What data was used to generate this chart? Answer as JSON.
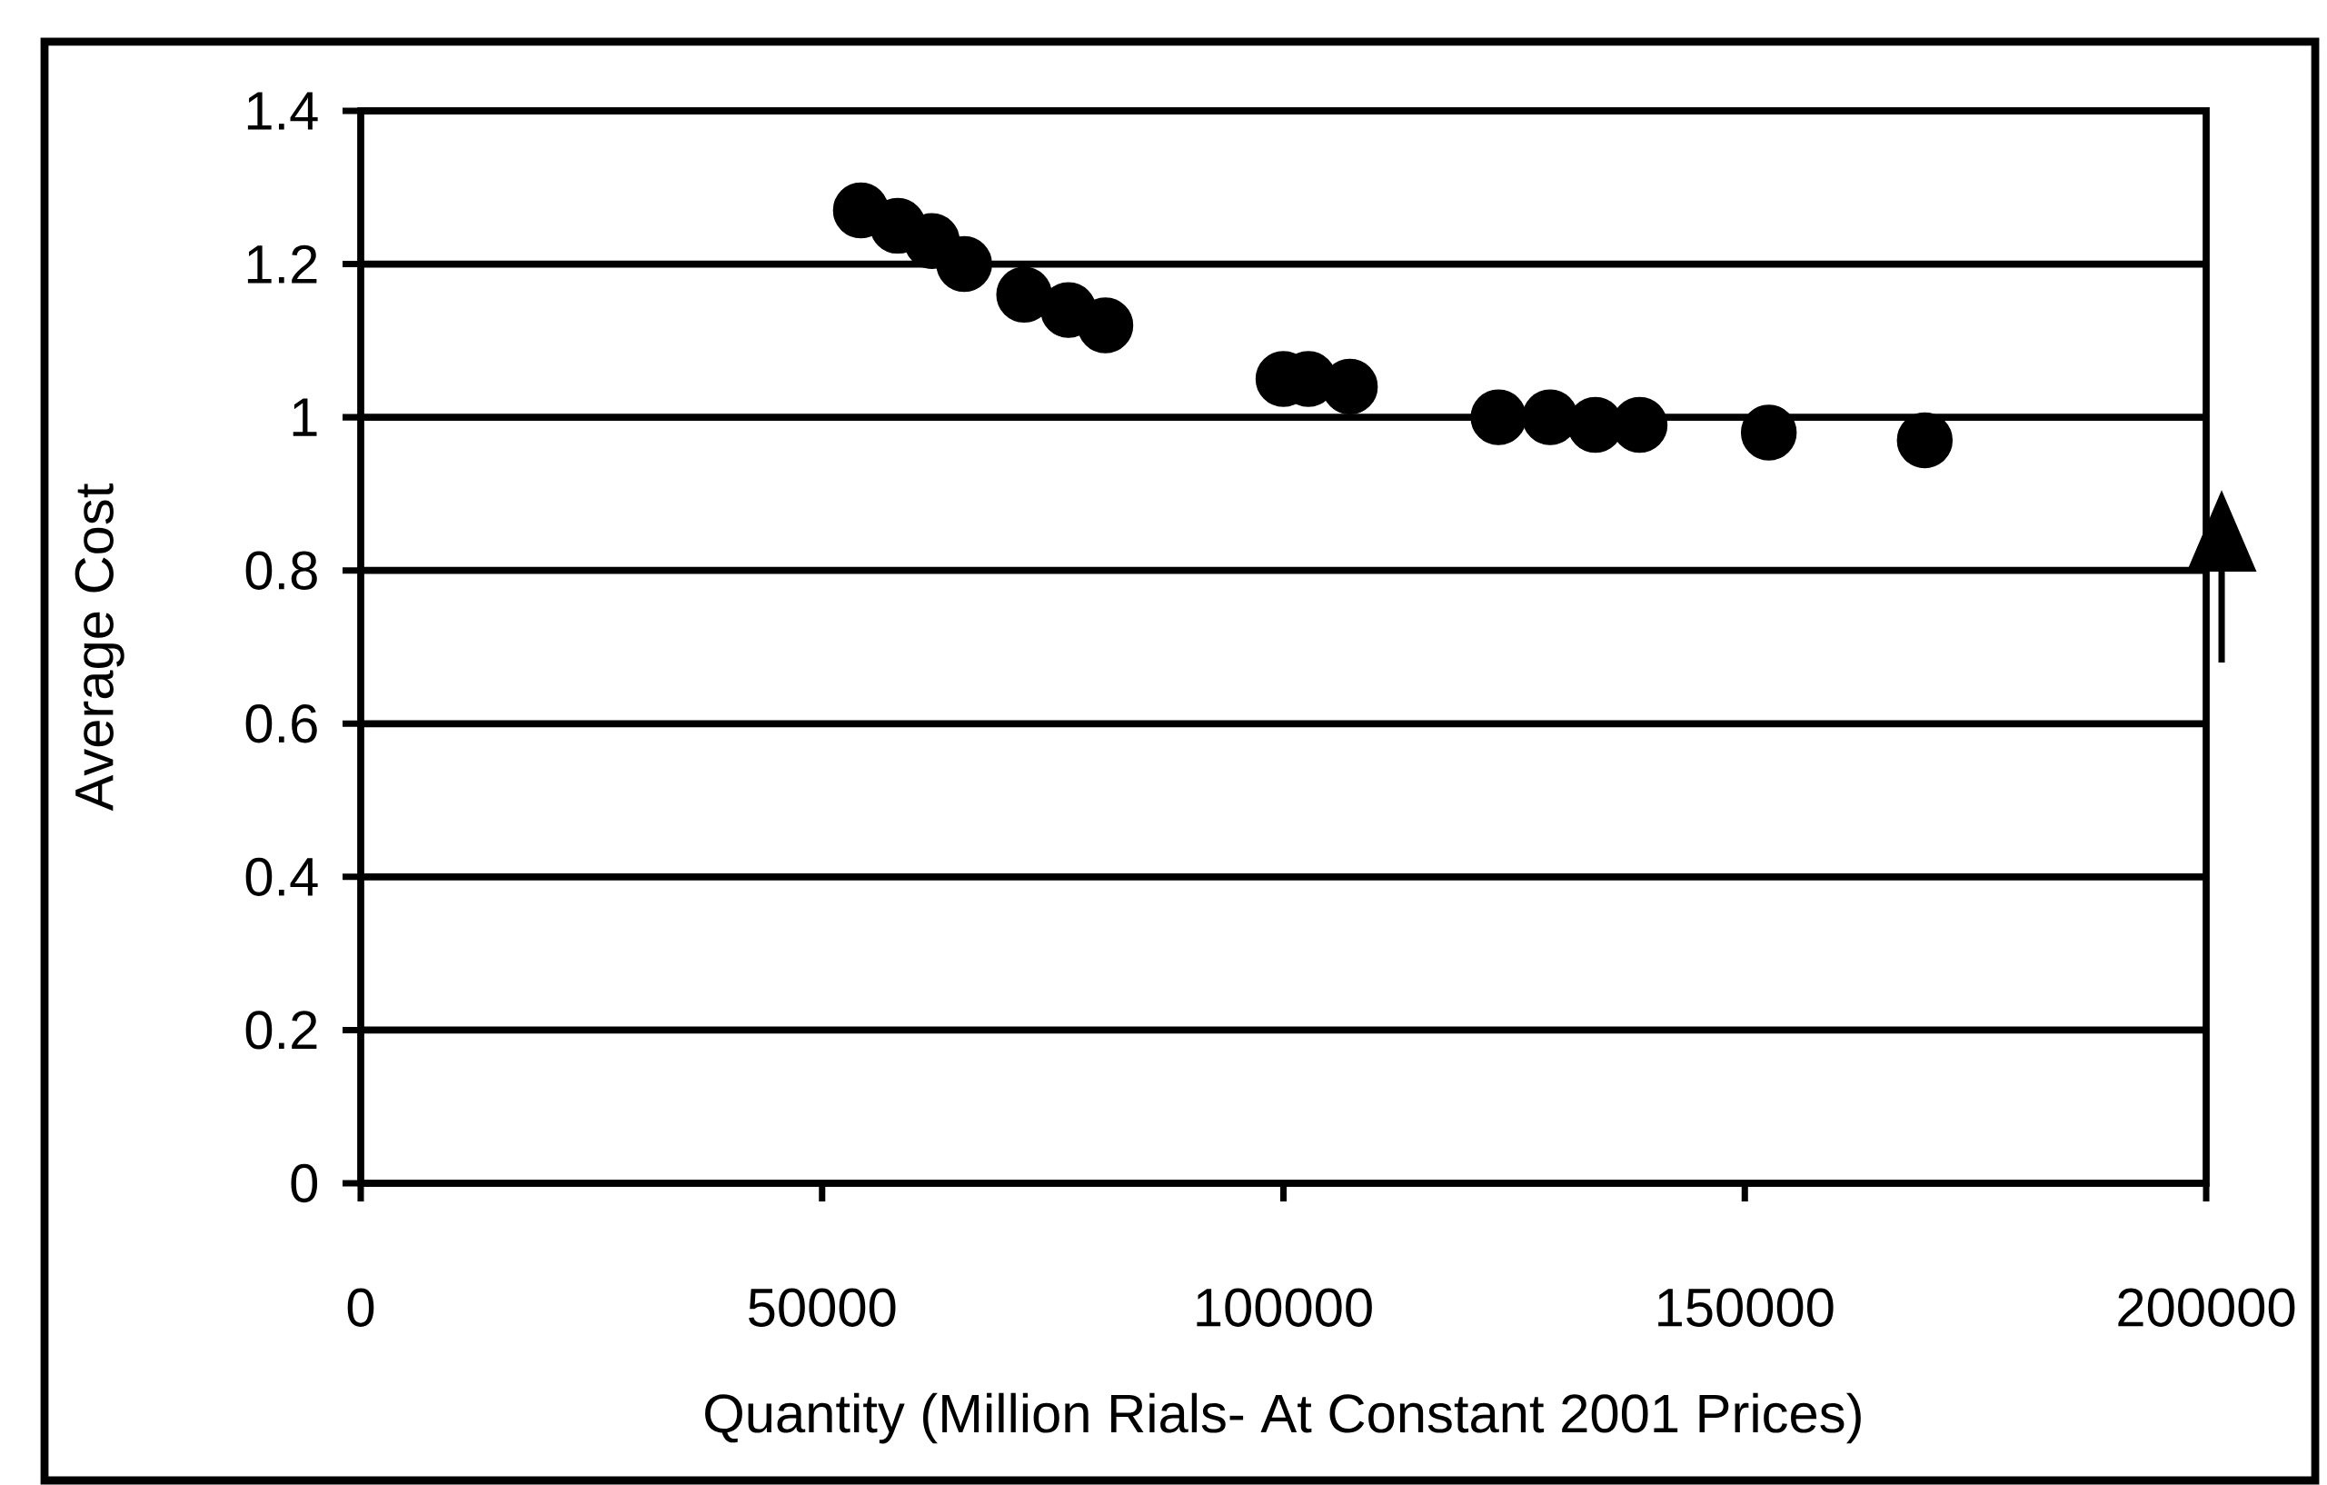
{
  "chart_data": {
    "type": "scatter",
    "xlabel": "Quantity (Million Rials- At Constant 2001 Prices)",
    "ylabel": "Average Cost",
    "x": [
      54200,
      58200,
      61900,
      65400,
      71900,
      76700,
      80700,
      100000,
      102700,
      107200,
      123300,
      128900,
      133800,
      138600,
      152600,
      169500
    ],
    "values": [
      1.27,
      1.25,
      1.23,
      1.2,
      1.16,
      1.14,
      1.12,
      1.05,
      1.05,
      1.04,
      1.0,
      1.0,
      0.99,
      0.99,
      0.98,
      0.97
    ],
    "color": "#000000",
    "marker": "circle",
    "xlim": [
      0,
      200000
    ],
    "xticks": [
      0,
      50000,
      100000,
      150000,
      200000
    ],
    "ylim": [
      0,
      1.4
    ],
    "yticks": [
      0,
      0.2,
      0.4,
      0.6,
      0.8,
      1,
      1.2,
      1.4
    ],
    "grid": "y"
  }
}
